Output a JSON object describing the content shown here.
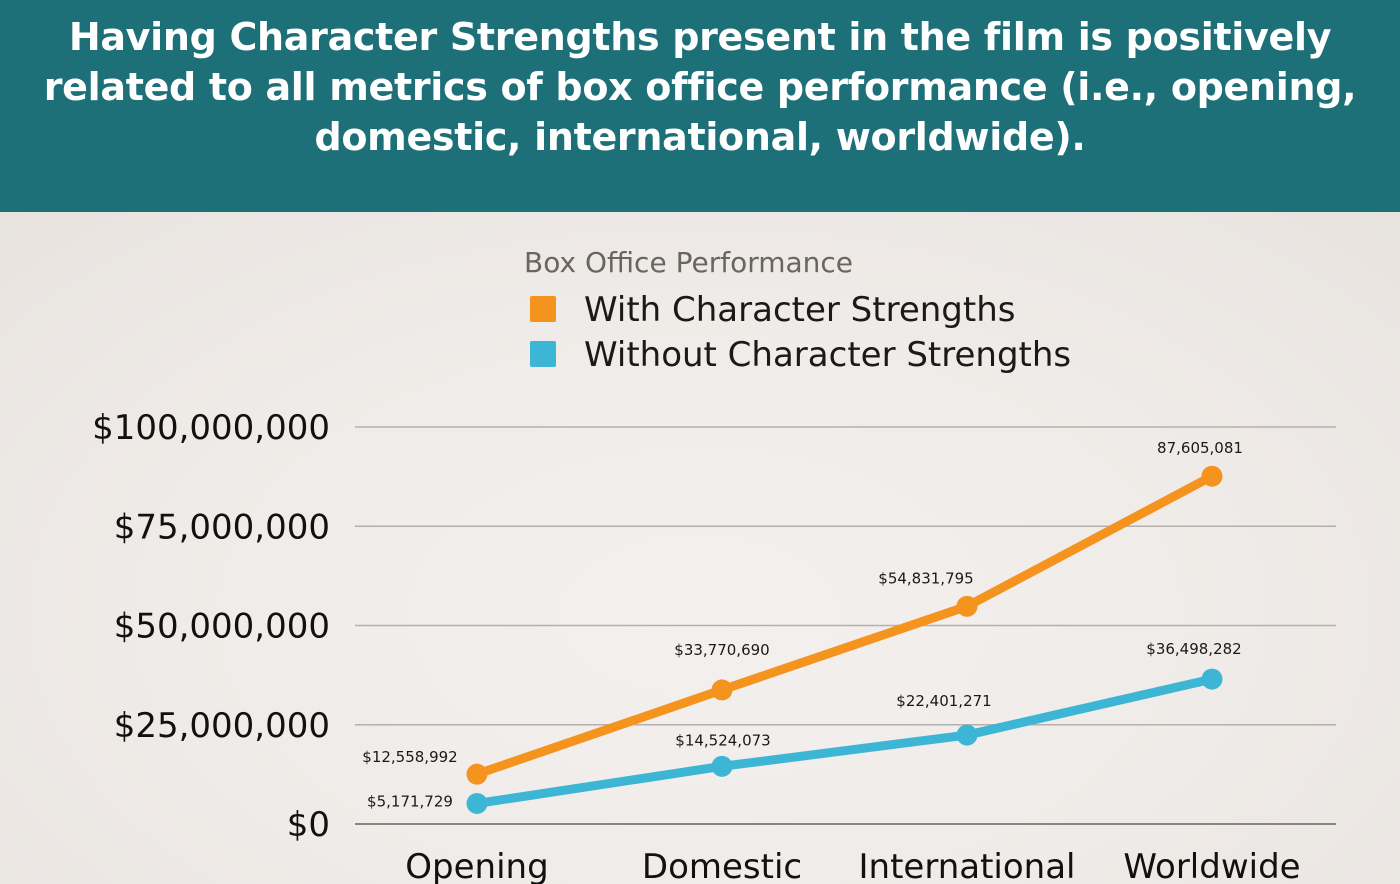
{
  "headline": "Having Character Strengths present in the film is positively related to all metrics of box office performance (i.e., opening, domestic, international, worldwide).",
  "colors": {
    "banner": "#1e7078",
    "with": "#f4941e",
    "without": "#3db6d6",
    "grid": "#b5b0ad"
  },
  "chart_data": {
    "type": "line",
    "title": "Box Office Performance",
    "categories": [
      "Opening",
      "Domestic",
      "International",
      "Worldwide"
    ],
    "ylim": [
      0,
      100000000
    ],
    "yticks": [
      0,
      25000000,
      50000000,
      75000000,
      100000000
    ],
    "ytick_labels": [
      "$0",
      "$25,000,000",
      "$50,000,000",
      "$75,000,000",
      "$100,000,000"
    ],
    "grid": true,
    "legend_position": "top",
    "series": [
      {
        "name": "With Character Strengths",
        "color": "#f4941e",
        "values": [
          12558992,
          33770690,
          54831795,
          87605081
        ],
        "labels": [
          "$12,558,992",
          "$33,770,690",
          "$54,831,795",
          "87,605,081"
        ]
      },
      {
        "name": "Without Character Strengths",
        "color": "#3db6d6",
        "values": [
          5171729,
          14524073,
          22401271,
          36498282
        ],
        "labels": [
          "$5,171,729",
          "$14,524,073",
          "$22,401,271",
          "$36,498,282"
        ]
      }
    ]
  }
}
